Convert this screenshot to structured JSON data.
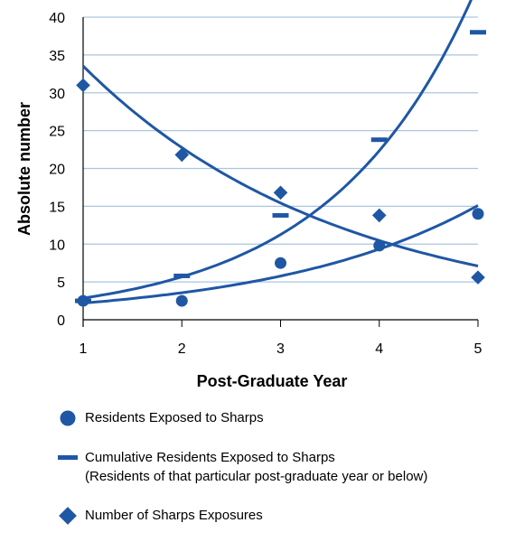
{
  "chart_data": {
    "type": "line",
    "xlabel": "Post-Graduate Year",
    "ylabel": "Absolute number",
    "xlim": [
      1,
      5
    ],
    "ylim": [
      0,
      40
    ],
    "x_ticks": [
      1,
      2,
      3,
      4,
      5
    ],
    "y_ticks": [
      0,
      5,
      10,
      15,
      20,
      25,
      30,
      35,
      40
    ],
    "grid": "horizontal",
    "legend_position": "bottom",
    "series": [
      {
        "name": "Residents Exposed to Sharps",
        "marker": "circle",
        "x": [
          1,
          2,
          3,
          4,
          5
        ],
        "values": [
          2.5,
          2.5,
          7.5,
          9.8,
          14
        ],
        "trend": "exponential"
      },
      {
        "name": "Cumulative Residents Exposed to Sharps",
        "name_note": "(Residents of that particular post-graduate year or below)",
        "marker": "dash",
        "x": [
          1,
          2,
          3,
          4,
          5
        ],
        "values": [
          2.5,
          5.8,
          13.8,
          23.8,
          38
        ],
        "trend": "exponential"
      },
      {
        "name": "Number of Sharps Exposures",
        "marker": "diamond",
        "x": [
          1,
          2,
          3,
          4,
          5
        ],
        "values": [
          31,
          21.8,
          16.8,
          13.8,
          5.6
        ],
        "trend": "exponential"
      }
    ],
    "colors": {
      "series": "#1f57a4",
      "grid": "#a9c6e0",
      "axis": "#000000"
    }
  },
  "legend": {
    "items": [
      {
        "label": "Residents Exposed to Sharps"
      },
      {
        "label": "Cumulative Residents Exposed to Sharps",
        "sub": "(Residents of that particular post-graduate year or below)"
      },
      {
        "label": "Number of Sharps Exposures"
      }
    ]
  }
}
